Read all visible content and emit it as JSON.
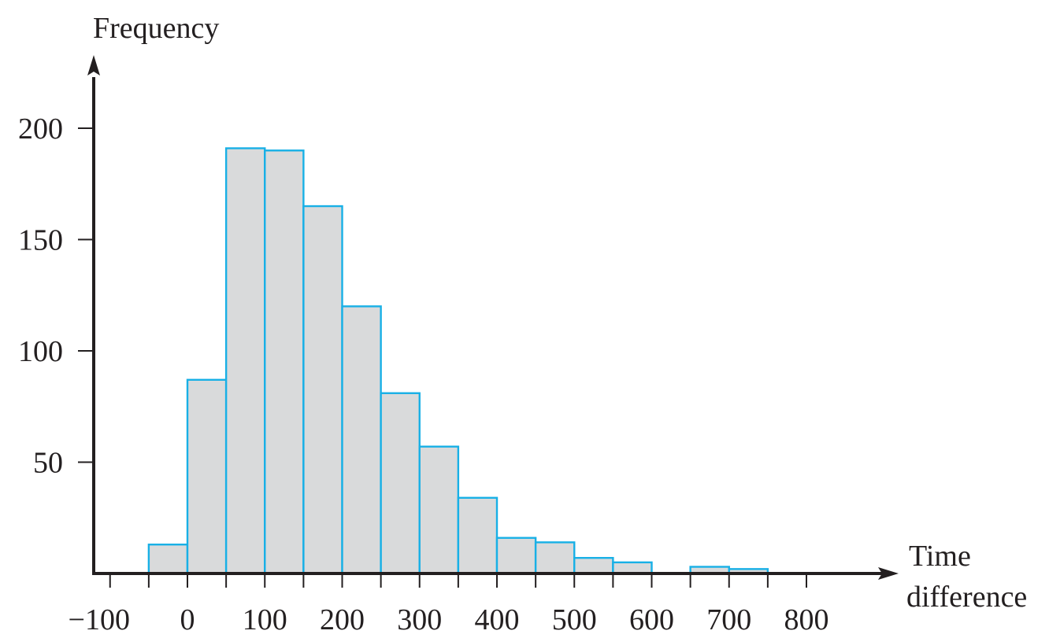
{
  "chart_data": {
    "type": "bar",
    "title": "",
    "xlabel_lines": [
      "Time",
      "difference"
    ],
    "ylabel": "Frequency",
    "bin_width": 50,
    "bins": [
      {
        "start": -50,
        "end": 0,
        "value": 13
      },
      {
        "start": 0,
        "end": 50,
        "value": 87
      },
      {
        "start": 50,
        "end": 100,
        "value": 191
      },
      {
        "start": 100,
        "end": 150,
        "value": 190
      },
      {
        "start": 150,
        "end": 200,
        "value": 165
      },
      {
        "start": 200,
        "end": 250,
        "value": 120
      },
      {
        "start": 250,
        "end": 300,
        "value": 81
      },
      {
        "start": 300,
        "end": 350,
        "value": 57
      },
      {
        "start": 350,
        "end": 400,
        "value": 34
      },
      {
        "start": 400,
        "end": 450,
        "value": 16
      },
      {
        "start": 450,
        "end": 500,
        "value": 14
      },
      {
        "start": 500,
        "end": 550,
        "value": 7
      },
      {
        "start": 550,
        "end": 600,
        "value": 5
      },
      {
        "start": 650,
        "end": 700,
        "value": 3
      },
      {
        "start": 700,
        "end": 750,
        "value": 2
      }
    ],
    "x_ticks": [
      -100,
      -50,
      0,
      50,
      100,
      150,
      200,
      250,
      300,
      350,
      400,
      450,
      500,
      550,
      600,
      650,
      700,
      750,
      800
    ],
    "x_tick_labels": [
      {
        "value": -100,
        "label": "−100"
      },
      {
        "value": 0,
        "label": "0"
      },
      {
        "value": 100,
        "label": "100"
      },
      {
        "value": 200,
        "label": "200"
      },
      {
        "value": 300,
        "label": "300"
      },
      {
        "value": 400,
        "label": "400"
      },
      {
        "value": 500,
        "label": "500"
      },
      {
        "value": 600,
        "label": "600"
      },
      {
        "value": 700,
        "label": "700"
      },
      {
        "value": 800,
        "label": "800"
      }
    ],
    "y_ticks": [
      {
        "value": 50,
        "label": "50"
      },
      {
        "value": 100,
        "label": "100"
      },
      {
        "value": 150,
        "label": "150"
      },
      {
        "value": 200,
        "label": "200"
      }
    ],
    "xlim": [
      -124,
      920
    ],
    "ylim": [
      0,
      230
    ],
    "grid": false,
    "bar_fill": "#d9dadb",
    "bar_stroke": "#18b0e6",
    "axis_color": "#231f20"
  }
}
